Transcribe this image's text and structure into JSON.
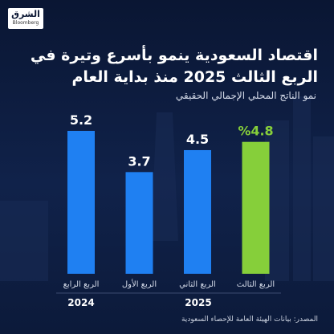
{
  "logo": {
    "name": "الشرق",
    "brand": "Bloomberg"
  },
  "chart_data": {
    "type": "bar",
    "title": "اقتصاد السعودية ينمو بأسرع وتيرة في الربع الثالث 2025 منذ بداية العام",
    "subtitle": "نمو الناتج المحلي الإجمالي الحقيقي",
    "categories": [
      "الربع الرابع",
      "الربع الأول",
      "الربع الثاني",
      "الربع الثالث"
    ],
    "values": [
      5.2,
      3.7,
      4.5,
      4.8
    ],
    "value_labels": [
      "5.2",
      "3.7",
      "4.5",
      "%4.8"
    ],
    "colors": [
      "#1f80f2",
      "#1f80f2",
      "#1f80f2",
      "#86cf3a"
    ],
    "groups": [
      "2024",
      "2025"
    ],
    "source": "المصدر: بيانات الهيئة العامة للإحصاء السعودية"
  }
}
